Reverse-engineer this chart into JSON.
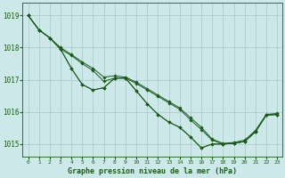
{
  "title": "Graphe pression niveau de la mer (hPa)",
  "background_color": "#cce8e8",
  "grid_color": "#b0cccc",
  "line_color": "#1a5c1a",
  "marker_color": "#1a5c1a",
  "xlim": [
    -0.5,
    23.5
  ],
  "ylim": [
    1014.6,
    1019.4
  ],
  "xticks": [
    0,
    1,
    2,
    3,
    4,
    5,
    6,
    7,
    8,
    9,
    10,
    11,
    12,
    13,
    14,
    15,
    16,
    17,
    18,
    19,
    20,
    21,
    22,
    23
  ],
  "yticks": [
    1015,
    1016,
    1017,
    1018,
    1019
  ],
  "series": [
    [
      1019.0,
      1018.55,
      1018.3,
      1017.95,
      1017.35,
      1016.85,
      1016.68,
      1016.75,
      1017.05,
      1017.05,
      1016.65,
      1016.25,
      1015.92,
      1015.68,
      1015.52,
      1015.22,
      1014.88,
      1015.0,
      1015.0,
      1015.02,
      1015.08,
      1015.38,
      1015.9,
      1015.92
    ],
    [
      1019.0,
      1018.55,
      1018.3,
      1017.95,
      1017.75,
      1017.5,
      1017.28,
      1016.95,
      1017.05,
      1017.05,
      1016.88,
      1016.68,
      1016.48,
      1016.28,
      1016.08,
      1015.75,
      1015.45,
      1015.12,
      1015.0,
      1015.02,
      1015.08,
      1015.38,
      1015.9,
      1015.92
    ],
    [
      1019.0,
      1018.55,
      1018.3,
      1017.95,
      1017.35,
      1016.85,
      1016.68,
      1016.75,
      1017.05,
      1017.05,
      1016.65,
      1016.25,
      1015.92,
      1015.68,
      1015.52,
      1015.22,
      1014.88,
      1015.0,
      1015.0,
      1015.02,
      1015.08,
      1015.38,
      1015.9,
      1015.92
    ],
    [
      1019.0,
      1018.55,
      1018.3,
      1018.0,
      1017.78,
      1017.55,
      1017.35,
      1017.08,
      1017.12,
      1017.08,
      1016.92,
      1016.72,
      1016.52,
      1016.32,
      1016.12,
      1015.82,
      1015.52,
      1015.15,
      1015.02,
      1015.05,
      1015.12,
      1015.42,
      1015.92,
      1015.95
    ]
  ]
}
